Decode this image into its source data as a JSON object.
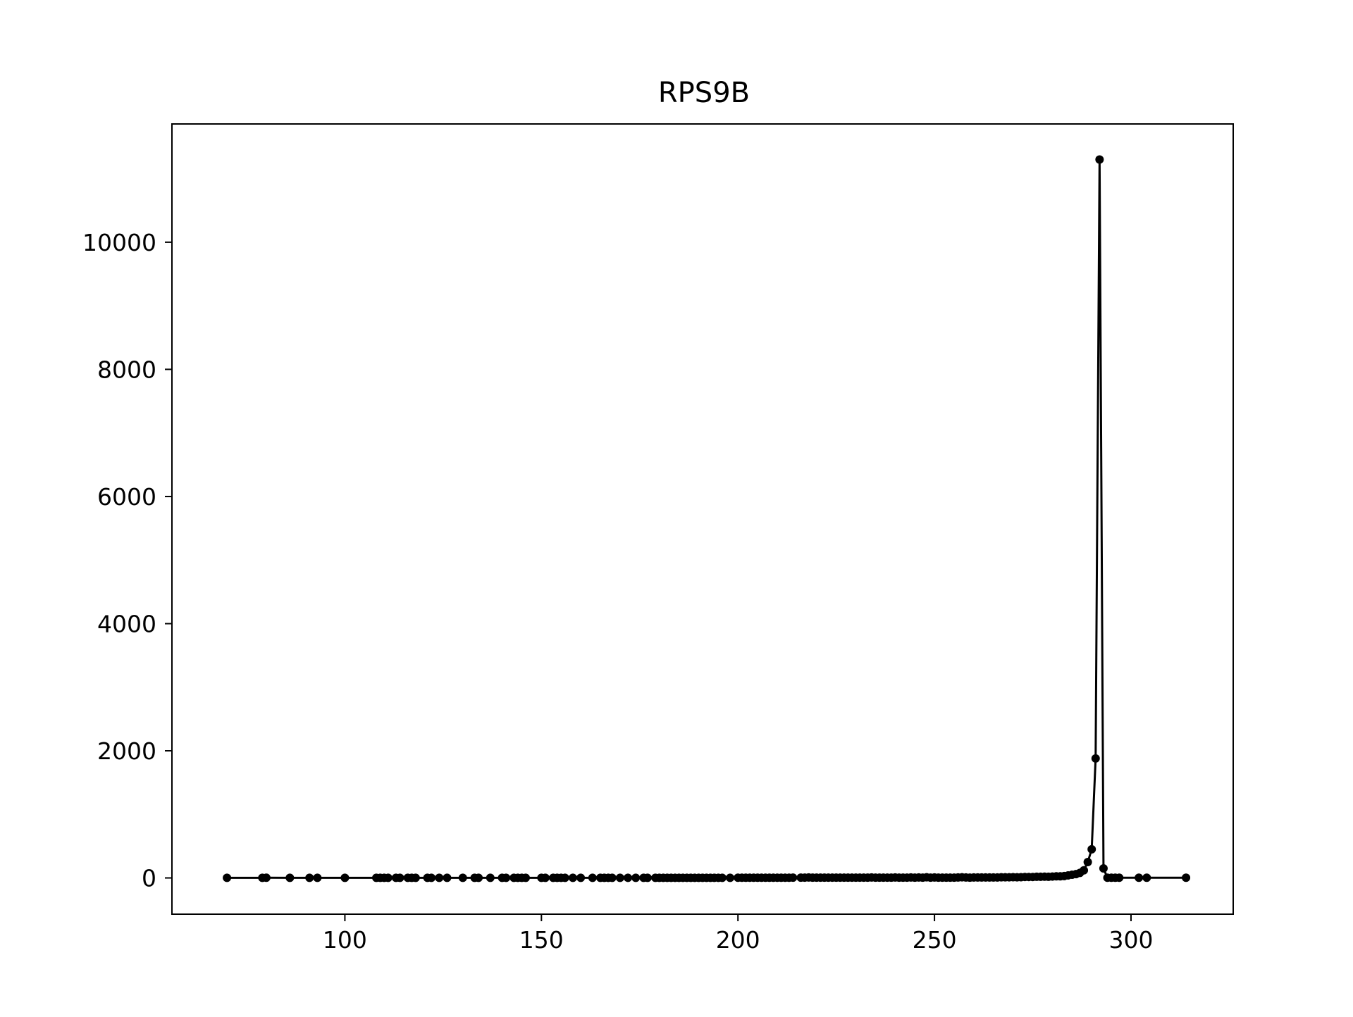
{
  "chart_data": {
    "type": "line",
    "title": "RPS9B",
    "xlabel": "",
    "ylabel": "",
    "xlim": [
      56,
      326
    ],
    "ylim": [
      -570,
      11860
    ],
    "xticks": [
      100,
      150,
      200,
      250,
      300
    ],
    "yticks": [
      0,
      2000,
      4000,
      6000,
      8000,
      10000
    ],
    "grid": false,
    "legend": "none",
    "colors": {
      "line": "#000000",
      "marker": "#000000",
      "axes": "#000000",
      "background": "#ffffff"
    },
    "series": [
      {
        "marker": "circle",
        "x": [
          70,
          79,
          80,
          86,
          91,
          93,
          100,
          108,
          109,
          110,
          111,
          113,
          114,
          116,
          117,
          118,
          121,
          122,
          124,
          126,
          130,
          133,
          134,
          137,
          140,
          141,
          143,
          144,
          145,
          146,
          150,
          151,
          153,
          154,
          155,
          156,
          158,
          160,
          163,
          165,
          166,
          167,
          168,
          170,
          172,
          174,
          176,
          177,
          179,
          180,
          181,
          182,
          183,
          184,
          185,
          186,
          187,
          188,
          189,
          190,
          191,
          192,
          193,
          194,
          195,
          196,
          198,
          200,
          201,
          202,
          203,
          204,
          205,
          206,
          207,
          208,
          209,
          210,
          211,
          212,
          213,
          214,
          216,
          217,
          218,
          219,
          220,
          221,
          222,
          223,
          224,
          225,
          226,
          227,
          228,
          229,
          230,
          231,
          232,
          233,
          234,
          235,
          236,
          237,
          238,
          239,
          240,
          241,
          242,
          243,
          244,
          245,
          246,
          247,
          248,
          249,
          250,
          251,
          252,
          253,
          254,
          255,
          256,
          257,
          258,
          259,
          260,
          261,
          262,
          263,
          264,
          265,
          266,
          267,
          268,
          269,
          270,
          271,
          272,
          273,
          274,
          275,
          276,
          277,
          278,
          279,
          280,
          281,
          282,
          283,
          284,
          285,
          286,
          287,
          288,
          289,
          290,
          291,
          292,
          293,
          294,
          295,
          296,
          297,
          302,
          304,
          314
        ],
        "y": [
          2,
          2,
          3,
          2,
          2,
          2,
          2,
          2,
          2,
          2,
          2,
          2,
          2,
          2,
          2,
          2,
          2,
          2,
          2,
          2,
          2,
          2,
          2,
          2,
          2,
          2,
          2,
          2,
          2,
          2,
          2,
          2,
          2,
          2,
          2,
          2,
          2,
          2,
          2,
          2,
          2,
          2,
          2,
          2,
          2,
          2,
          2,
          2,
          2,
          2,
          2,
          2,
          2,
          2,
          2,
          2,
          2,
          2,
          2,
          2,
          2,
          2,
          2,
          2,
          2,
          2,
          2,
          3,
          3,
          3,
          3,
          3,
          3,
          3,
          3,
          3,
          3,
          3,
          3,
          3,
          3,
          5,
          5,
          5,
          8,
          5,
          5,
          5,
          5,
          5,
          5,
          5,
          5,
          5,
          5,
          5,
          5,
          5,
          5,
          5,
          8,
          5,
          5,
          5,
          5,
          5,
          8,
          5,
          5,
          5,
          8,
          5,
          8,
          5,
          10,
          5,
          8,
          5,
          5,
          5,
          5,
          5,
          8,
          10,
          8,
          5,
          8,
          8,
          8,
          8,
          8,
          8,
          8,
          10,
          10,
          10,
          12,
          10,
          12,
          15,
          15,
          15,
          18,
          18,
          20,
          18,
          22,
          25,
          25,
          30,
          40,
          50,
          60,
          80,
          120,
          250,
          450,
          1880,
          11300,
          150,
          3,
          3,
          3,
          3,
          3,
          3,
          3
        ]
      }
    ]
  }
}
